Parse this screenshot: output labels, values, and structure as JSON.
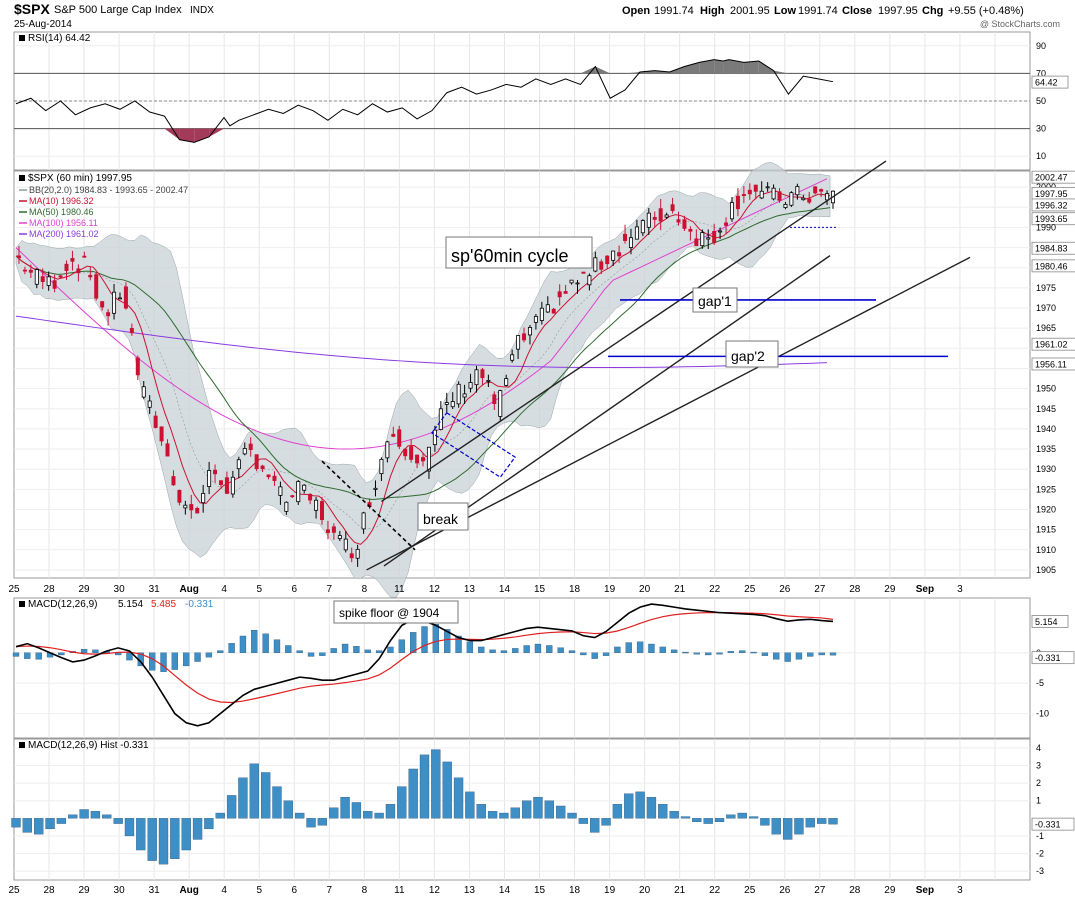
{
  "header": {
    "symbol": "$SPX",
    "name": "S&P 500 Large Cap Index",
    "exchange": "INDX",
    "date": "25-Aug-2014",
    "watermark": "@ StockCharts.com",
    "quote": {
      "open_label": "Open",
      "open": "1991.74",
      "high_label": "High",
      "high": "2001.95",
      "low_label": "Low",
      "low": "1991.74",
      "close_label": "Close",
      "close": "1997.95",
      "chg_label": "Chg",
      "chg": "+9.55 (+0.48%)"
    }
  },
  "colors": {
    "up_candle": "#000000",
    "down_candle": "#cc1133",
    "ma10": "#cc1133",
    "ma50": "#2f6b2f",
    "ma100": "#e040d0",
    "ma200": "#8a3ae0",
    "bb_fill": "#c8d2d6",
    "macd_hist": "#3d8fc6",
    "annotation_line": "#0000cc",
    "trend_line": "#222222"
  },
  "chart_data": [
    {
      "type": "line",
      "panel": "rsi",
      "label": "RSI(14) 64.42",
      "value": 64.42,
      "ylim": [
        0,
        100
      ],
      "yticks": [
        10,
        30,
        50,
        70,
        90
      ],
      "reference_lines": [
        30,
        50,
        70
      ],
      "last_value_label": "64.42",
      "x": [
        0,
        5,
        10,
        15,
        20,
        25,
        30,
        35,
        40,
        45,
        50,
        55,
        60,
        65,
        70,
        72,
        75,
        80,
        85,
        90,
        95,
        100,
        105,
        110,
        115,
        120,
        125,
        130,
        135,
        140,
        145,
        150,
        155,
        160,
        165,
        170,
        175,
        180,
        185,
        190,
        195,
        200,
        205,
        210,
        215,
        220,
        225,
        230,
        235,
        238,
        240,
        245,
        250,
        255,
        260,
        265,
        270,
        275
      ],
      "values": [
        48,
        52,
        43,
        50,
        40,
        45,
        48,
        44,
        50,
        42,
        39,
        22,
        20,
        24,
        38,
        32,
        36,
        40,
        44,
        41,
        47,
        43,
        36,
        44,
        40,
        48,
        42,
        45,
        37,
        43,
        56,
        60,
        55,
        58,
        62,
        60,
        66,
        62,
        66,
        62,
        75,
        52,
        58,
        71,
        72,
        71,
        75,
        78,
        80,
        79,
        80,
        78,
        79,
        72,
        55,
        68,
        66,
        64
      ]
    },
    {
      "type": "candlestick",
      "panel": "price",
      "title": "$SPX (60 min) 1997.95",
      "ylim": [
        1903,
        2004
      ],
      "yticks": [
        1905,
        1910,
        1915,
        1920,
        1925,
        1930,
        1935,
        1940,
        1945,
        1950,
        1955,
        1960,
        1965,
        1970,
        1975,
        1980,
        1985,
        1990,
        1995,
        2000
      ],
      "x_tick_labels": [
        "25",
        "28",
        "29",
        "30",
        "31",
        "Aug",
        "4",
        "5",
        "6",
        "7",
        "8",
        "11",
        "12",
        "13",
        "14",
        "15",
        "18",
        "19",
        "20",
        "21",
        "22",
        "25",
        "26",
        "27",
        "28",
        "29",
        "Sep",
        "3"
      ],
      "legend": [
        {
          "label": "BB(20,2.0) 1984.83 - 1993.65 - 2002.47",
          "color_key": "bb"
        },
        {
          "label": "MA(10) 1996.32",
          "color_key": "ma10"
        },
        {
          "label": "MA(50) 1980.46",
          "color_key": "ma50"
        },
        {
          "label": "MA(100) 1956.11",
          "color_key": "ma100"
        },
        {
          "label": "MA(200) 1961.02",
          "color_key": "ma200"
        }
      ],
      "right_value_labels": [
        "2002.47",
        "2000",
        "1997.95",
        "1996.32",
        "1993.65",
        "1990",
        "1984.83",
        "1980.46",
        "1975",
        "1970",
        "1965",
        "1961.02",
        "1956.11",
        "1950",
        "1945",
        "1940",
        "1935",
        "1930",
        "1925",
        "1920",
        "1915",
        "1910",
        "1905"
      ],
      "close_points": {
        "x": [
          0,
          6,
          12,
          18,
          24,
          30,
          36,
          42,
          48,
          54,
          60,
          66,
          72,
          78,
          84,
          90,
          96,
          102,
          108,
          114,
          120,
          126,
          132,
          138,
          144,
          150,
          156,
          162,
          168,
          174,
          180,
          186,
          192,
          198,
          204,
          210,
          216,
          222,
          228,
          234,
          240,
          246,
          252,
          258,
          264,
          270,
          275
        ],
        "values": [
          1983,
          1978,
          1976,
          1982,
          1980,
          1968,
          1975,
          1950,
          1940,
          1925,
          1918,
          1930,
          1925,
          1935,
          1930,
          1922,
          1925,
          1920,
          1912,
          1910,
          1925,
          1940,
          1935,
          1932,
          1945,
          1950,
          1955,
          1945,
          1960,
          1965,
          1970,
          1975,
          1978,
          1982,
          1986,
          1990,
          1993,
          1994,
          1988,
          1987,
          1994,
          2000,
          1998,
          1997,
          1998,
          1997.95,
          1997.95
        ]
      },
      "annotations": [
        {
          "text": "sp'60min cycle"
        },
        {
          "text": "gap'1",
          "level": 1972
        },
        {
          "text": "gap'2",
          "level": 1958
        },
        {
          "text": "break"
        }
      ]
    },
    {
      "type": "line",
      "panel": "macd",
      "label_prefix": "MACD(12,26,9)",
      "macd": "5.154",
      "signal": "5.485",
      "hist": "-0.331",
      "ylim": [
        -14,
        9
      ],
      "yticks": [
        -10,
        -5,
        0
      ],
      "annotation": "spike floor @ 1904",
      "last_value_labels": [
        "5.154",
        "-0.331"
      ]
    },
    {
      "type": "bar",
      "panel": "macd_hist",
      "label": "MACD(12,26,9) Hist -0.331",
      "ylim": [
        -3.5,
        4.5
      ],
      "yticks": [
        -3,
        -2,
        -1,
        1,
        2,
        3,
        4
      ],
      "last_value_label": "-0.331",
      "values": [
        -0.5,
        -0.8,
        -0.9,
        -0.6,
        -0.3,
        0.2,
        0.5,
        0.4,
        0.2,
        -0.3,
        -1.0,
        -1.8,
        -2.4,
        -2.6,
        -2.3,
        -1.8,
        -1.2,
        -0.6,
        0.3,
        1.3,
        2.3,
        3.1,
        2.6,
        1.8,
        1.0,
        0.3,
        -0.5,
        -0.4,
        0.6,
        1.2,
        0.9,
        0.4,
        0.3,
        0.8,
        1.8,
        2.8,
        3.6,
        3.9,
        3.2,
        2.3,
        1.5,
        0.8,
        0.4,
        0.3,
        0.6,
        1.0,
        1.2,
        1.0,
        0.7,
        0.3,
        -0.3,
        -0.8,
        -0.4,
        0.8,
        1.4,
        1.5,
        1.2,
        0.8,
        0.4,
        0.1,
        -0.2,
        -0.3,
        -0.2,
        0.2,
        0.3,
        0.1,
        -0.4,
        -0.9,
        -1.2,
        -0.9,
        -0.5,
        -0.3,
        -0.331
      ]
    }
  ]
}
